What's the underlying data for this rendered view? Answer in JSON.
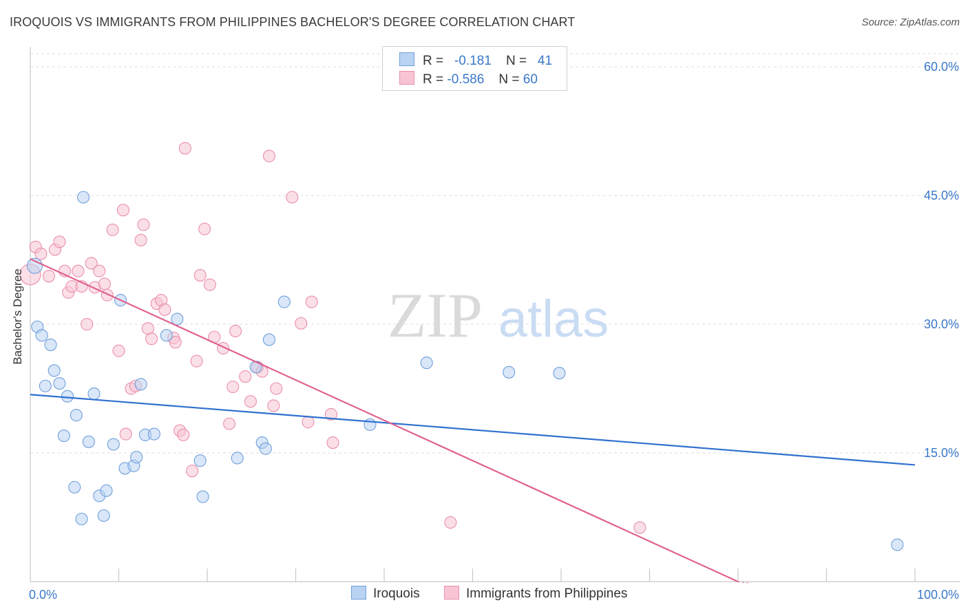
{
  "title": "IROQUOIS VS IMMIGRANTS FROM PHILIPPINES BACHELOR'S DEGREE CORRELATION CHART",
  "source": "Source: ZipAtlas.com",
  "watermark": {
    "zip": "ZIP",
    "atlas": "atlas"
  },
  "legend": {
    "rows": [
      {
        "r_label": "R =",
        "r_value": "-0.181",
        "n_label": "N =",
        "n_value": "41"
      },
      {
        "r_label": "R =",
        "r_value": "-0.586",
        "n_label": "N =",
        "n_value": "60"
      }
    ]
  },
  "colors": {
    "blue_fill": "#b9d3f3",
    "blue_stroke": "#6f9fdb",
    "blue_line": "#2e70cf",
    "pink_fill": "#f8c4d3",
    "pink_stroke": "#e98fab",
    "pink_line": "#e0618d",
    "grid": "#dddddd",
    "tick_label": "#3a78c9"
  },
  "chart_data": {
    "type": "scatter",
    "title": "IROQUOIS VS IMMIGRANTS FROM PHILIPPINES BACHELOR'S DEGREE CORRELATION CHART",
    "xlabel": "",
    "ylabel": "Bachelor's Degree",
    "xlim": [
      0,
      100
    ],
    "ylim": [
      0,
      60
    ],
    "x_tick_labels": [
      "0.0%",
      "100.0%"
    ],
    "y_ticks": [
      15,
      30,
      45,
      60
    ],
    "y_tick_labels": [
      "15.0%",
      "30.0%",
      "45.0%",
      "60.0%"
    ],
    "grid": "horizontal dashed",
    "legend_position": "top-center and bottom",
    "series": [
      {
        "name": "Iroquois",
        "color": "#6f9fdb",
        "points": [
          [
            0.5,
            36.8
          ],
          [
            0.8,
            29.7
          ],
          [
            1.3,
            28.7
          ],
          [
            1.7,
            22.8
          ],
          [
            2.3,
            27.6
          ],
          [
            2.7,
            24.6
          ],
          [
            3.3,
            23.1
          ],
          [
            3.8,
            17.0
          ],
          [
            4.2,
            21.6
          ],
          [
            5.0,
            11.0
          ],
          [
            5.2,
            19.4
          ],
          [
            5.8,
            7.3
          ],
          [
            6.6,
            16.3
          ],
          [
            7.2,
            21.9
          ],
          [
            7.8,
            10.0
          ],
          [
            8.3,
            7.7
          ],
          [
            8.6,
            10.6
          ],
          [
            9.4,
            16.0
          ],
          [
            10.2,
            32.8
          ],
          [
            10.7,
            13.2
          ],
          [
            11.7,
            13.5
          ],
          [
            12.0,
            14.5
          ],
          [
            12.5,
            23.0
          ],
          [
            13.0,
            17.1
          ],
          [
            14.0,
            17.2
          ],
          [
            15.4,
            28.7
          ],
          [
            16.6,
            30.6
          ],
          [
            19.2,
            14.1
          ],
          [
            19.5,
            9.9
          ],
          [
            23.4,
            14.4
          ],
          [
            25.5,
            25.0
          ],
          [
            26.2,
            16.2
          ],
          [
            26.6,
            15.5
          ],
          [
            27.0,
            28.2
          ],
          [
            28.7,
            32.6
          ],
          [
            38.4,
            18.3
          ],
          [
            44.8,
            25.5
          ],
          [
            54.1,
            24.4
          ],
          [
            59.8,
            24.3
          ],
          [
            6.0,
            44.8
          ],
          [
            98.0,
            4.3
          ]
        ],
        "trend": [
          [
            0,
            21.8
          ],
          [
            100,
            13.6
          ]
        ]
      },
      {
        "name": "Immigrants from Philippines",
        "color": "#e98fab",
        "points": [
          [
            0.0,
            35.8
          ],
          [
            0.6,
            39.0
          ],
          [
            1.2,
            38.2
          ],
          [
            2.1,
            35.6
          ],
          [
            2.8,
            38.7
          ],
          [
            3.3,
            39.6
          ],
          [
            3.9,
            36.2
          ],
          [
            4.3,
            33.7
          ],
          [
            4.7,
            34.4
          ],
          [
            5.4,
            36.2
          ],
          [
            5.8,
            34.4
          ],
          [
            6.4,
            30.0
          ],
          [
            6.9,
            37.1
          ],
          [
            7.3,
            34.3
          ],
          [
            7.8,
            36.2
          ],
          [
            8.4,
            34.7
          ],
          [
            8.7,
            33.4
          ],
          [
            9.3,
            41.0
          ],
          [
            10.0,
            26.9
          ],
          [
            10.5,
            43.3
          ],
          [
            10.8,
            17.2
          ],
          [
            11.4,
            22.5
          ],
          [
            11.9,
            22.8
          ],
          [
            12.5,
            39.8
          ],
          [
            12.8,
            41.6
          ],
          [
            13.3,
            29.5
          ],
          [
            13.7,
            28.3
          ],
          [
            14.3,
            32.4
          ],
          [
            14.8,
            32.8
          ],
          [
            15.2,
            31.7
          ],
          [
            16.2,
            28.4
          ],
          [
            16.4,
            27.9
          ],
          [
            16.9,
            17.6
          ],
          [
            17.3,
            17.1
          ],
          [
            17.5,
            50.5
          ],
          [
            18.3,
            12.9
          ],
          [
            18.8,
            25.7
          ],
          [
            19.2,
            35.7
          ],
          [
            19.7,
            41.1
          ],
          [
            20.3,
            34.6
          ],
          [
            20.8,
            28.5
          ],
          [
            21.8,
            27.2
          ],
          [
            22.5,
            18.4
          ],
          [
            22.9,
            22.7
          ],
          [
            23.2,
            29.2
          ],
          [
            24.3,
            23.9
          ],
          [
            24.9,
            21.0
          ],
          [
            25.7,
            25.0
          ],
          [
            26.2,
            24.5
          ],
          [
            27.0,
            49.6
          ],
          [
            27.5,
            20.5
          ],
          [
            27.8,
            22.5
          ],
          [
            29.6,
            44.8
          ],
          [
            31.4,
            18.6
          ],
          [
            31.8,
            32.6
          ],
          [
            34.0,
            19.5
          ],
          [
            34.2,
            16.2
          ],
          [
            47.5,
            6.9
          ],
          [
            68.9,
            6.3
          ],
          [
            30.6,
            30.1
          ]
        ],
        "trend": [
          [
            0,
            37.6
          ],
          [
            80,
            0.0
          ]
        ]
      }
    ]
  },
  "bottom_legend": [
    {
      "label": "Iroquois"
    },
    {
      "label": "Immigrants from Philippines"
    }
  ]
}
